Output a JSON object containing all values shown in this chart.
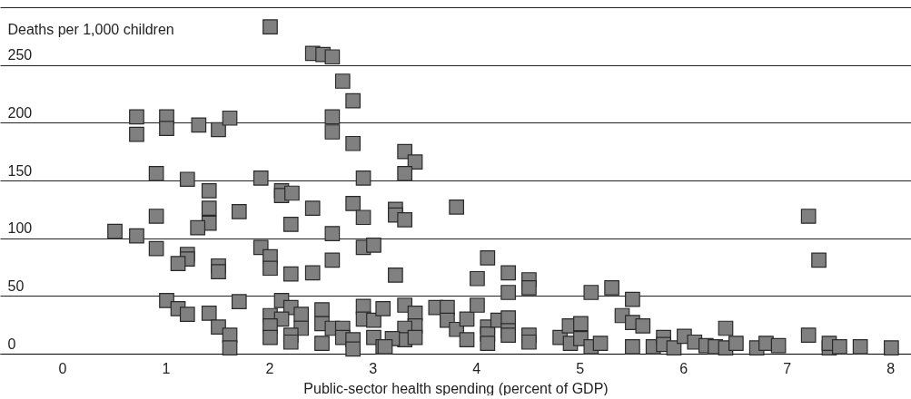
{
  "chart_data": {
    "type": "scatter",
    "xlabel": "Public-sector health spending (percent of GDP)",
    "ylabel": "Deaths per 1,000 children",
    "xlim": [
      -0.6,
      8.2
    ],
    "xticks": [
      0,
      1,
      2,
      3,
      4,
      5,
      6,
      7,
      8
    ],
    "ylim": [
      0,
      300
    ],
    "yticks": [
      0,
      50,
      100,
      150,
      200,
      250,
      {
        "value": 300,
        "label": null
      }
    ],
    "grid": "y",
    "marker": "square",
    "legend": false,
    "series": [
      {
        "color": "#808080",
        "x": [
          0.51,
          0.72,
          0.72,
          0.72,
          1.01,
          1.01,
          1.32,
          1.51,
          1.62,
          0.91,
          1.21,
          1.42,
          1.42,
          1.42,
          1.31,
          0.91,
          1.71,
          0.91,
          1.21,
          1.21,
          1.12,
          1.51,
          1.51,
          1.01,
          1.12,
          1.21,
          1.42,
          1.51,
          1.62,
          1.62,
          1.71,
          2.01,
          2.42,
          2.52,
          2.61,
          2.71,
          2.81,
          2.61,
          2.61,
          2.81,
          1.92,
          2.91,
          2.12,
          2.12,
          2.22,
          2.42,
          2.81,
          2.91,
          2.21,
          2.61,
          1.92,
          2.01,
          2.01,
          2.21,
          2.42,
          2.61,
          2.91,
          3.01,
          2.12,
          2.21,
          2.01,
          2.12,
          2.31,
          2.31,
          2.01,
          2.01,
          2.21,
          2.21,
          2.51,
          2.51,
          2.51,
          2.61,
          2.71,
          2.71,
          2.81,
          2.81,
          2.91,
          2.91,
          3.01,
          3.01,
          3.1,
          3.1,
          3.31,
          3.41,
          3.31,
          3.22,
          3.22,
          3.31,
          3.81,
          3.22,
          4.11,
          4.01,
          4.31,
          4.31,
          4.51,
          4.51,
          3.31,
          3.41,
          3.41,
          3.31,
          3.31,
          3.41,
          3.19,
          3.12,
          3.61,
          3.72,
          3.72,
          3.81,
          3.91,
          3.91,
          4.01,
          4.11,
          4.11,
          4.11,
          4.21,
          4.31,
          4.31,
          4.31,
          4.51,
          4.51,
          5.11,
          5.31,
          5.51,
          5.41,
          5.51,
          5.61,
          4.81,
          4.9,
          5.01,
          4.91,
          5.01,
          5.11,
          5.2,
          5.51,
          5.71,
          5.81,
          5.81,
          5.91,
          7.21,
          7.31,
          7.21,
          6.41,
          6.01,
          6.11,
          6.22,
          6.31,
          6.41,
          6.51,
          6.71,
          6.8,
          6.92,
          7.41,
          7.41,
          7.51,
          7.71,
          8.01
        ],
        "values": [
          106,
          205,
          190,
          102,
          205,
          195,
          198,
          194,
          204,
          156,
          151,
          141,
          126,
          113,
          109,
          119,
          123,
          91,
          86,
          82,
          78,
          76,
          71,
          46,
          39,
          34,
          35,
          23,
          16,
          5,
          45,
          283,
          260,
          259,
          257,
          236,
          219,
          205,
          192,
          182,
          152,
          152,
          141,
          137,
          139,
          126,
          130,
          118,
          112,
          104,
          92,
          84,
          74,
          69,
          70,
          81,
          92,
          94,
          46,
          40,
          33,
          30,
          34,
          22,
          24,
          14,
          16,
          10,
          38,
          26,
          9,
          22,
          22,
          14,
          12,
          4,
          41,
          30,
          29,
          14,
          39,
          6,
          175,
          166,
          156,
          125,
          120,
          116,
          127,
          68,
          83,
          65,
          70,
          53,
          64,
          57,
          42,
          35,
          24,
          22,
          12,
          14,
          13,
          6,
          40,
          40,
          29,
          21,
          30,
          12,
          42,
          23,
          17,
          9,
          29,
          31,
          20,
          16,
          16,
          10,
          53,
          57,
          47,
          33,
          27,
          24,
          14,
          24,
          26,
          9,
          13,
          6,
          9,
          6,
          6,
          14,
          8,
          5,
          119,
          81,
          16,
          22,
          15,
          10,
          7,
          6,
          5,
          9,
          5,
          9,
          7,
          5,
          9,
          6,
          6,
          5
        ]
      }
    ]
  }
}
